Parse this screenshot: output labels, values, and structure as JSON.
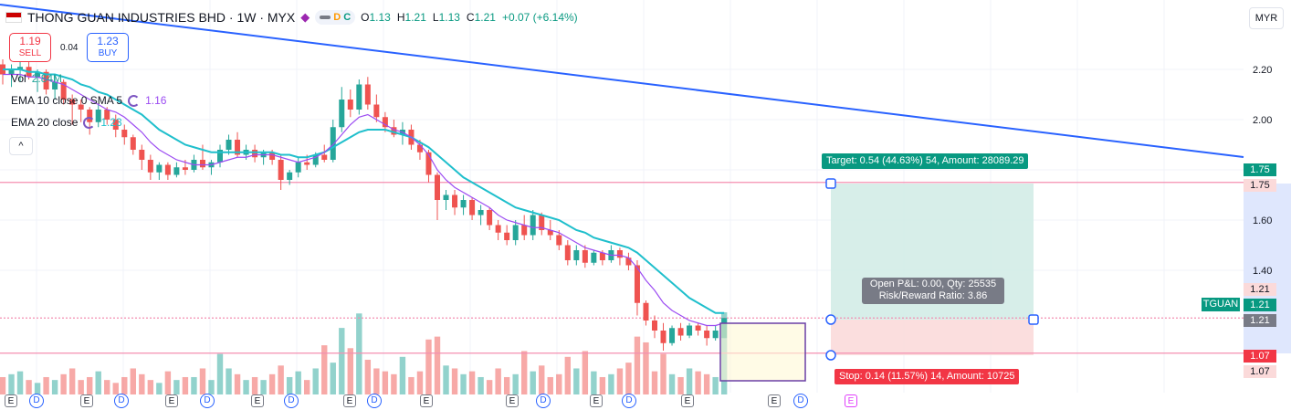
{
  "header": {
    "symbol_title": "THONG GUAN INDUSTRIES BHD · 1W · MYX",
    "pills": {
      "d": "D",
      "c": "C"
    },
    "ohlc": {
      "o_label": "O",
      "o": "1.13",
      "h_label": "H",
      "h": "1.21",
      "l_label": "L",
      "l": "1.13",
      "c_label": "C",
      "c": "1.21",
      "change": "+0.07 (+6.14%)"
    }
  },
  "trade": {
    "sell_price": "1.19",
    "sell_label": "SELL",
    "spread": "0.04",
    "buy_price": "1.23",
    "buy_label": "BUY"
  },
  "legend": {
    "vol_label": "Vol",
    "vol_value": "2.84M",
    "ema10_label": "EMA 10 close 0 SMA 5",
    "ema10_value": "1.16",
    "ema20_label": "EMA 20 close",
    "ema20_value": "1.23"
  },
  "collapse_icon": "^",
  "currency": "MYR",
  "price_axis": [
    "2.20",
    "2.00",
    "1.60",
    "1.40"
  ],
  "price_labels": {
    "target": "1.75",
    "target_line": "1.75",
    "entry_a": "1.21",
    "entry_b": "1.21",
    "entry_c": "1.21",
    "stop": "1.07",
    "stop_line": "1.07"
  },
  "position": {
    "target_text": "Target: 0.54 (44.63%) 54, Amount: 28089.29",
    "stop_text": "Stop: 0.14 (11.57%) 14, Amount: 10725",
    "info_line1": "Open P&L: 0.00, Qty: 25535",
    "info_line2": "Risk/Reward Ratio: 3.86"
  },
  "symbol_tag": "TGUAN",
  "events": {
    "e": "E",
    "d": "D"
  },
  "colors": {
    "up": "#26a69a",
    "down": "#ef5350",
    "ema10": "#9c4cf2",
    "ema20": "#1fbfcc",
    "trend": "#2962ff",
    "target_fill": "#d3ece7",
    "stop_fill": "#fbdada"
  },
  "chart_data": {
    "type": "candlestick",
    "ylim": [
      1.05,
      2.3
    ],
    "candles": [
      [
        2.22,
        2.24,
        2.14,
        2.18
      ],
      [
        2.18,
        2.22,
        2.13,
        2.2
      ],
      [
        2.2,
        2.25,
        2.15,
        2.21
      ],
      [
        2.21,
        2.24,
        2.16,
        2.17
      ],
      [
        2.17,
        2.2,
        2.11,
        2.19
      ],
      [
        2.19,
        2.2,
        2.1,
        2.12
      ],
      [
        2.12,
        2.18,
        2.08,
        2.15
      ],
      [
        2.15,
        2.16,
        2.06,
        2.08
      ],
      [
        2.08,
        2.1,
        1.98,
        2.06
      ],
      [
        2.06,
        2.08,
        1.99,
        2.04
      ],
      [
        2.04,
        2.05,
        1.94,
        1.99
      ],
      [
        1.99,
        2.06,
        1.97,
        2.04
      ],
      [
        2.04,
        2.05,
        1.98,
        2.0
      ],
      [
        2.0,
        2.02,
        1.93,
        1.96
      ],
      [
        1.96,
        1.98,
        1.9,
        1.93
      ],
      [
        1.93,
        1.94,
        1.86,
        1.88
      ],
      [
        1.88,
        1.9,
        1.8,
        1.84
      ],
      [
        1.84,
        1.86,
        1.76,
        1.79
      ],
      [
        1.79,
        1.83,
        1.76,
        1.82
      ],
      [
        1.82,
        1.83,
        1.76,
        1.78
      ],
      [
        1.78,
        1.83,
        1.77,
        1.81
      ],
      [
        1.81,
        1.84,
        1.78,
        1.8
      ],
      [
        1.8,
        1.86,
        1.79,
        1.84
      ],
      [
        1.84,
        1.9,
        1.8,
        1.81
      ],
      [
        1.81,
        1.84,
        1.78,
        1.83
      ],
      [
        1.83,
        1.9,
        1.81,
        1.88
      ],
      [
        1.88,
        1.94,
        1.86,
        1.92
      ],
      [
        1.92,
        1.95,
        1.85,
        1.86
      ],
      [
        1.86,
        1.9,
        1.84,
        1.88
      ],
      [
        1.88,
        1.9,
        1.83,
        1.85
      ],
      [
        1.85,
        1.88,
        1.82,
        1.87
      ],
      [
        1.87,
        1.88,
        1.82,
        1.84
      ],
      [
        1.84,
        1.86,
        1.72,
        1.76
      ],
      [
        1.76,
        1.8,
        1.74,
        1.79
      ],
      [
        1.79,
        1.85,
        1.77,
        1.83
      ],
      [
        1.83,
        1.86,
        1.8,
        1.82
      ],
      [
        1.82,
        1.87,
        1.81,
        1.86
      ],
      [
        1.86,
        1.9,
        1.83,
        1.84
      ],
      [
        1.84,
        2.0,
        1.83,
        1.97
      ],
      [
        1.97,
        2.13,
        1.95,
        2.08
      ],
      [
        2.08,
        2.12,
        2.01,
        2.04
      ],
      [
        2.04,
        2.16,
        2.02,
        2.14
      ],
      [
        2.14,
        2.17,
        2.04,
        2.06
      ],
      [
        2.06,
        2.1,
        1.99,
        2.01
      ],
      [
        2.01,
        2.03,
        1.95,
        1.97
      ],
      [
        1.97,
        2.0,
        1.93,
        1.94
      ],
      [
        1.94,
        1.99,
        1.9,
        1.96
      ],
      [
        1.96,
        1.98,
        1.88,
        1.9
      ],
      [
        1.9,
        1.92,
        1.84,
        1.87
      ],
      [
        1.87,
        1.88,
        1.75,
        1.78
      ],
      [
        1.78,
        1.79,
        1.6,
        1.68
      ],
      [
        1.68,
        1.72,
        1.64,
        1.7
      ],
      [
        1.7,
        1.72,
        1.62,
        1.65
      ],
      [
        1.65,
        1.7,
        1.62,
        1.68
      ],
      [
        1.68,
        1.69,
        1.6,
        1.62
      ],
      [
        1.62,
        1.66,
        1.58,
        1.64
      ],
      [
        1.64,
        1.65,
        1.56,
        1.58
      ],
      [
        1.58,
        1.6,
        1.52,
        1.55
      ],
      [
        1.55,
        1.58,
        1.5,
        1.52
      ],
      [
        1.52,
        1.6,
        1.5,
        1.58
      ],
      [
        1.58,
        1.62,
        1.52,
        1.54
      ],
      [
        1.54,
        1.64,
        1.52,
        1.62
      ],
      [
        1.62,
        1.63,
        1.54,
        1.56
      ],
      [
        1.56,
        1.6,
        1.52,
        1.54
      ],
      [
        1.54,
        1.56,
        1.48,
        1.5
      ],
      [
        1.5,
        1.52,
        1.42,
        1.44
      ],
      [
        1.44,
        1.5,
        1.42,
        1.48
      ],
      [
        1.48,
        1.5,
        1.41,
        1.43
      ],
      [
        1.43,
        1.48,
        1.42,
        1.47
      ],
      [
        1.47,
        1.48,
        1.42,
        1.44
      ],
      [
        1.44,
        1.5,
        1.43,
        1.48
      ],
      [
        1.48,
        1.49,
        1.42,
        1.45
      ],
      [
        1.45,
        1.47,
        1.4,
        1.42
      ],
      [
        1.42,
        1.44,
        1.22,
        1.27
      ],
      [
        1.27,
        1.28,
        1.18,
        1.2
      ],
      [
        1.2,
        1.22,
        1.13,
        1.16
      ],
      [
        1.16,
        1.19,
        1.08,
        1.11
      ],
      [
        1.11,
        1.18,
        1.1,
        1.17
      ],
      [
        1.17,
        1.19,
        1.12,
        1.14
      ],
      [
        1.14,
        1.19,
        1.13,
        1.18
      ],
      [
        1.18,
        1.19,
        1.14,
        1.16
      ],
      [
        1.16,
        1.18,
        1.1,
        1.13
      ],
      [
        1.13,
        1.18,
        1.12,
        1.16
      ],
      [
        1.13,
        1.21,
        1.13,
        1.21
      ]
    ],
    "ema10": [
      2.18,
      2.18,
      2.18,
      2.17,
      2.17,
      2.16,
      2.15,
      2.14,
      2.12,
      2.1,
      2.08,
      2.06,
      2.04,
      2.03,
      2.01,
      1.98,
      1.95,
      1.91,
      1.88,
      1.86,
      1.84,
      1.83,
      1.82,
      1.82,
      1.82,
      1.83,
      1.84,
      1.85,
      1.85,
      1.86,
      1.86,
      1.86,
      1.85,
      1.84,
      1.83,
      1.84,
      1.85,
      1.87,
      1.9,
      1.94,
      1.98,
      2.01,
      2.02,
      2.0,
      1.98,
      1.96,
      1.95,
      1.93,
      1.9,
      1.86,
      1.8,
      1.76,
      1.73,
      1.71,
      1.69,
      1.67,
      1.65,
      1.62,
      1.6,
      1.59,
      1.58,
      1.57,
      1.57,
      1.56,
      1.55,
      1.53,
      1.51,
      1.49,
      1.48,
      1.47,
      1.46,
      1.46,
      1.45,
      1.41,
      1.36,
      1.32,
      1.27,
      1.24,
      1.22,
      1.2,
      1.19,
      1.18,
      1.18,
      1.19
    ],
    "ema20": [
      2.2,
      2.2,
      2.2,
      2.19,
      2.19,
      2.18,
      2.18,
      2.17,
      2.16,
      2.14,
      2.13,
      2.11,
      2.1,
      2.08,
      2.06,
      2.04,
      2.02,
      1.99,
      1.96,
      1.94,
      1.92,
      1.9,
      1.89,
      1.88,
      1.87,
      1.87,
      1.87,
      1.87,
      1.87,
      1.87,
      1.87,
      1.87,
      1.86,
      1.86,
      1.85,
      1.85,
      1.86,
      1.87,
      1.89,
      1.91,
      1.93,
      1.95,
      1.96,
      1.96,
      1.96,
      1.95,
      1.94,
      1.93,
      1.91,
      1.89,
      1.86,
      1.83,
      1.8,
      1.77,
      1.75,
      1.73,
      1.71,
      1.69,
      1.67,
      1.65,
      1.64,
      1.63,
      1.62,
      1.61,
      1.6,
      1.58,
      1.56,
      1.55,
      1.53,
      1.52,
      1.51,
      1.5,
      1.49,
      1.47,
      1.44,
      1.41,
      1.38,
      1.35,
      1.32,
      1.29,
      1.27,
      1.25,
      1.23,
      1.23
    ],
    "volumes": [
      0.6,
      0.7,
      0.8,
      0.5,
      0.4,
      0.6,
      0.5,
      0.7,
      0.9,
      0.5,
      0.6,
      0.8,
      0.5,
      0.4,
      0.6,
      0.9,
      0.7,
      0.5,
      0.4,
      0.8,
      0.5,
      0.6,
      0.6,
      0.9,
      0.5,
      1.4,
      0.9,
      0.7,
      0.5,
      0.6,
      0.5,
      0.7,
      1.0,
      0.6,
      0.8,
      0.5,
      0.9,
      1.7,
      1.1,
      2.3,
      1.6,
      2.8,
      1.2,
      0.9,
      0.8,
      0.7,
      1.3,
      0.6,
      0.8,
      1.9,
      2.0,
      1.0,
      0.9,
      0.7,
      0.8,
      0.6,
      0.5,
      0.9,
      0.6,
      0.7,
      1.5,
      0.8,
      1.0,
      0.6,
      0.7,
      1.3,
      0.9,
      1.5,
      0.8,
      0.6,
      0.7,
      0.9,
      1.1,
      2.0,
      1.8,
      0.8,
      1.4,
      0.7,
      0.6,
      0.9,
      0.8,
      0.7,
      0.6,
      2.84
    ],
    "trendline": [
      [
        0,
        2.32
      ],
      [
        2000,
        1.8
      ]
    ],
    "horizontal_lines": [
      1.75,
      1.21,
      1.07
    ],
    "position": {
      "entry": 1.21,
      "target": 1.75,
      "stop": 1.07
    }
  }
}
